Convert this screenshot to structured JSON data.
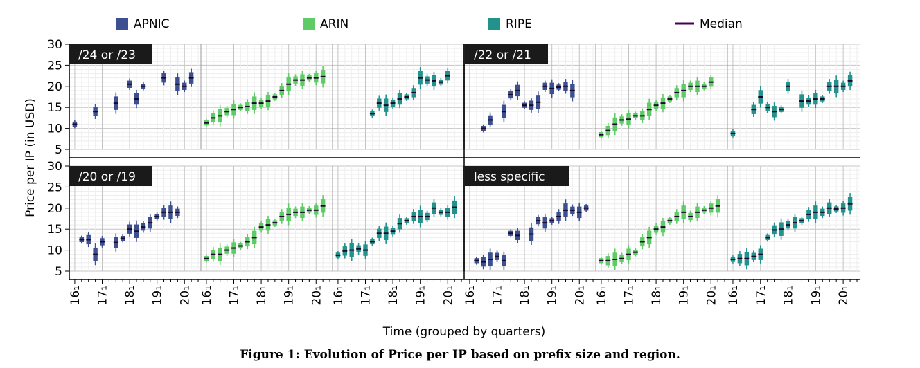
{
  "chart_data": {
    "type": "box",
    "caption": "Figure 1: Evolution of Price per IP based on prefix size and region.",
    "xlabel": "Time (grouped by quarters)",
    "ylabel": "Price per IP (in USD)",
    "ylim": [
      5,
      30
    ],
    "yticks": [
      5,
      10,
      15,
      20,
      25,
      30
    ],
    "xtick_labels": [
      "16₁",
      "17₁",
      "18₁",
      "19₁",
      "20₁"
    ],
    "grid": true,
    "legend_position": "top",
    "legend": [
      {
        "label": "APNIC",
        "color": "#3b4f91",
        "kind": "box"
      },
      {
        "label": "ARIN",
        "color": "#5fcb67",
        "kind": "box"
      },
      {
        "label": "RIPE",
        "color": "#23918c",
        "kind": "box"
      },
      {
        "label": "Median",
        "color": "#440154",
        "kind": "line"
      }
    ],
    "series_colors": {
      "APNIC": "#3b4f91",
      "ARIN": "#5fcb67",
      "RIPE": "#23918c",
      "median": "#1a0a2a"
    },
    "panels": [
      {
        "group": "/24 or /23",
        "region": "APNIC",
        "medians": [
          [
            16.0,
            11
          ],
          [
            16.75,
            14
          ],
          [
            17.5,
            16
          ],
          [
            18.0,
            20.5
          ],
          [
            18.25,
            17
          ],
          [
            18.5,
            20
          ],
          [
            19.25,
            22
          ],
          [
            19.75,
            20.5
          ],
          [
            20.0,
            20
          ],
          [
            20.25,
            22
          ]
        ]
      },
      {
        "group": "/24 or /23",
        "region": "ARIN",
        "medians": [
          [
            16.0,
            11.3
          ],
          [
            16.25,
            12.5
          ],
          [
            16.5,
            13
          ],
          [
            16.75,
            14
          ],
          [
            17.0,
            14.5
          ],
          [
            17.25,
            15
          ],
          [
            17.5,
            15.2
          ],
          [
            17.75,
            16
          ],
          [
            18.0,
            16
          ],
          [
            18.25,
            16.5
          ],
          [
            18.5,
            17.5
          ],
          [
            18.75,
            19
          ],
          [
            19.0,
            20.5
          ],
          [
            19.25,
            21.5
          ],
          [
            19.5,
            21.5
          ],
          [
            19.75,
            22
          ],
          [
            20.0,
            22
          ],
          [
            20.25,
            22.3
          ]
        ]
      },
      {
        "group": "/24 or /23",
        "region": "RIPE",
        "medians": [
          [
            17.25,
            13.5
          ],
          [
            17.5,
            16
          ],
          [
            17.75,
            15.5
          ],
          [
            18.0,
            16
          ],
          [
            18.25,
            17
          ],
          [
            18.5,
            17.5
          ],
          [
            18.75,
            18.5
          ],
          [
            19.0,
            22
          ],
          [
            19.25,
            21.5
          ],
          [
            19.5,
            21.3
          ],
          [
            19.75,
            21
          ],
          [
            20.0,
            22.5
          ]
        ]
      },
      {
        "group": "/22 or /21",
        "region": "APNIC",
        "medians": [
          [
            16.5,
            10
          ],
          [
            16.75,
            12
          ],
          [
            17.25,
            14
          ],
          [
            17.5,
            18
          ],
          [
            17.75,
            19
          ],
          [
            18.0,
            15.5
          ],
          [
            18.25,
            15.5
          ],
          [
            18.5,
            16.2
          ],
          [
            18.75,
            20
          ],
          [
            19.0,
            19.5
          ],
          [
            19.25,
            19.8
          ],
          [
            19.5,
            20
          ],
          [
            19.75,
            19
          ]
        ]
      },
      {
        "group": "/22 or /21",
        "region": "ARIN",
        "medians": [
          [
            16.0,
            8.5
          ],
          [
            16.25,
            9.5
          ],
          [
            16.5,
            11
          ],
          [
            16.75,
            12
          ],
          [
            17.0,
            12.2
          ],
          [
            17.25,
            13
          ],
          [
            17.5,
            13
          ],
          [
            17.75,
            14.5
          ],
          [
            18.0,
            15.5
          ],
          [
            18.25,
            16
          ],
          [
            18.5,
            17
          ],
          [
            18.75,
            18.5
          ],
          [
            19.0,
            19
          ],
          [
            19.25,
            20
          ],
          [
            19.5,
            20
          ],
          [
            19.75,
            20
          ],
          [
            20.0,
            21
          ]
        ]
      },
      {
        "group": "/22 or /21",
        "region": "RIPE",
        "medians": [
          [
            16.0,
            8.8
          ],
          [
            16.75,
            14.5
          ],
          [
            17.0,
            17.5
          ],
          [
            17.25,
            15
          ],
          [
            17.5,
            14
          ],
          [
            17.75,
            14.5
          ],
          [
            18.0,
            20
          ],
          [
            18.5,
            16.5
          ],
          [
            18.75,
            16.5
          ],
          [
            19.0,
            17
          ],
          [
            19.25,
            17
          ],
          [
            19.5,
            20
          ],
          [
            19.75,
            20
          ],
          [
            20.0,
            20
          ],
          [
            20.25,
            21.3
          ]
        ]
      },
      {
        "group": "/20 or /19",
        "region": "APNIC",
        "medians": [
          [
            16.25,
            12.5
          ],
          [
            16.5,
            12.5
          ],
          [
            16.75,
            9
          ],
          [
            17.0,
            12
          ],
          [
            17.5,
            11.8
          ],
          [
            17.75,
            12.8
          ],
          [
            18.0,
            15
          ],
          [
            18.25,
            14.5
          ],
          [
            18.5,
            15.5
          ],
          [
            18.75,
            16.5
          ],
          [
            19.0,
            18
          ],
          [
            19.25,
            19
          ],
          [
            19.5,
            19
          ],
          [
            19.75,
            19
          ]
        ]
      },
      {
        "group": "/20 or /19",
        "region": "ARIN",
        "medians": [
          [
            16.0,
            8
          ],
          [
            16.25,
            9
          ],
          [
            16.5,
            9
          ],
          [
            16.75,
            10
          ],
          [
            17.0,
            10.5
          ],
          [
            17.25,
            11
          ],
          [
            17.5,
            12
          ],
          [
            17.75,
            13
          ],
          [
            18.0,
            15.5
          ],
          [
            18.25,
            16
          ],
          [
            18.5,
            16.5
          ],
          [
            18.75,
            18
          ],
          [
            19.0,
            18.5
          ],
          [
            19.25,
            19
          ],
          [
            19.5,
            19
          ],
          [
            19.75,
            19.5
          ],
          [
            20.0,
            19.5
          ],
          [
            20.25,
            20.5
          ]
        ]
      },
      {
        "group": "/20 or /19",
        "region": "RIPE",
        "medians": [
          [
            16.0,
            8.8
          ],
          [
            16.25,
            9.8
          ],
          [
            16.5,
            10
          ],
          [
            16.75,
            10.3
          ],
          [
            17.0,
            10
          ],
          [
            17.25,
            12
          ],
          [
            17.5,
            14
          ],
          [
            17.75,
            14
          ],
          [
            18.0,
            14.5
          ],
          [
            18.25,
            16.3
          ],
          [
            18.5,
            17
          ],
          [
            18.75,
            18
          ],
          [
            19.0,
            18
          ],
          [
            19.25,
            18
          ],
          [
            19.5,
            20
          ],
          [
            19.75,
            19
          ],
          [
            20.0,
            19
          ],
          [
            20.25,
            20.2
          ]
        ]
      },
      {
        "group": "less specific",
        "region": "APNIC",
        "medians": [
          [
            16.25,
            7.5
          ],
          [
            16.5,
            7.2
          ],
          [
            16.75,
            7.8
          ],
          [
            17.0,
            8.5
          ],
          [
            17.25,
            7.5
          ],
          [
            17.5,
            14
          ],
          [
            17.75,
            13.5
          ],
          [
            18.25,
            13.8
          ],
          [
            18.5,
            17
          ],
          [
            18.75,
            16.5
          ],
          [
            19.0,
            17
          ],
          [
            19.25,
            18
          ],
          [
            19.5,
            19.5
          ],
          [
            19.75,
            19.5
          ],
          [
            20.0,
            19
          ],
          [
            20.25,
            20
          ]
        ]
      },
      {
        "group": "less specific",
        "region": "ARIN",
        "medians": [
          [
            16.0,
            7.5
          ],
          [
            16.25,
            7.5
          ],
          [
            16.5,
            7.8
          ],
          [
            16.75,
            8
          ],
          [
            17.0,
            9
          ],
          [
            17.25,
            9.5
          ],
          [
            17.5,
            12
          ],
          [
            17.75,
            13
          ],
          [
            18.0,
            15
          ],
          [
            18.25,
            15.5
          ],
          [
            18.5,
            17
          ],
          [
            18.75,
            18
          ],
          [
            19.0,
            19
          ],
          [
            19.25,
            18
          ],
          [
            19.5,
            19
          ],
          [
            19.75,
            19.5
          ],
          [
            20.0,
            20
          ],
          [
            20.25,
            20.5
          ]
        ]
      },
      {
        "group": "less specific",
        "region": "RIPE",
        "medians": [
          [
            16.0,
            7.8
          ],
          [
            16.25,
            8
          ],
          [
            16.5,
            8
          ],
          [
            16.75,
            8.5
          ],
          [
            17.0,
            9
          ],
          [
            17.25,
            13
          ],
          [
            17.5,
            14.8
          ],
          [
            17.75,
            15
          ],
          [
            18.0,
            16
          ],
          [
            18.25,
            16.5
          ],
          [
            18.5,
            17
          ],
          [
            18.75,
            18.5
          ],
          [
            19.0,
            19
          ],
          [
            19.25,
            19
          ],
          [
            19.5,
            20
          ],
          [
            19.75,
            19.8
          ],
          [
            20.0,
            20
          ],
          [
            20.25,
            21
          ]
        ]
      }
    ]
  }
}
